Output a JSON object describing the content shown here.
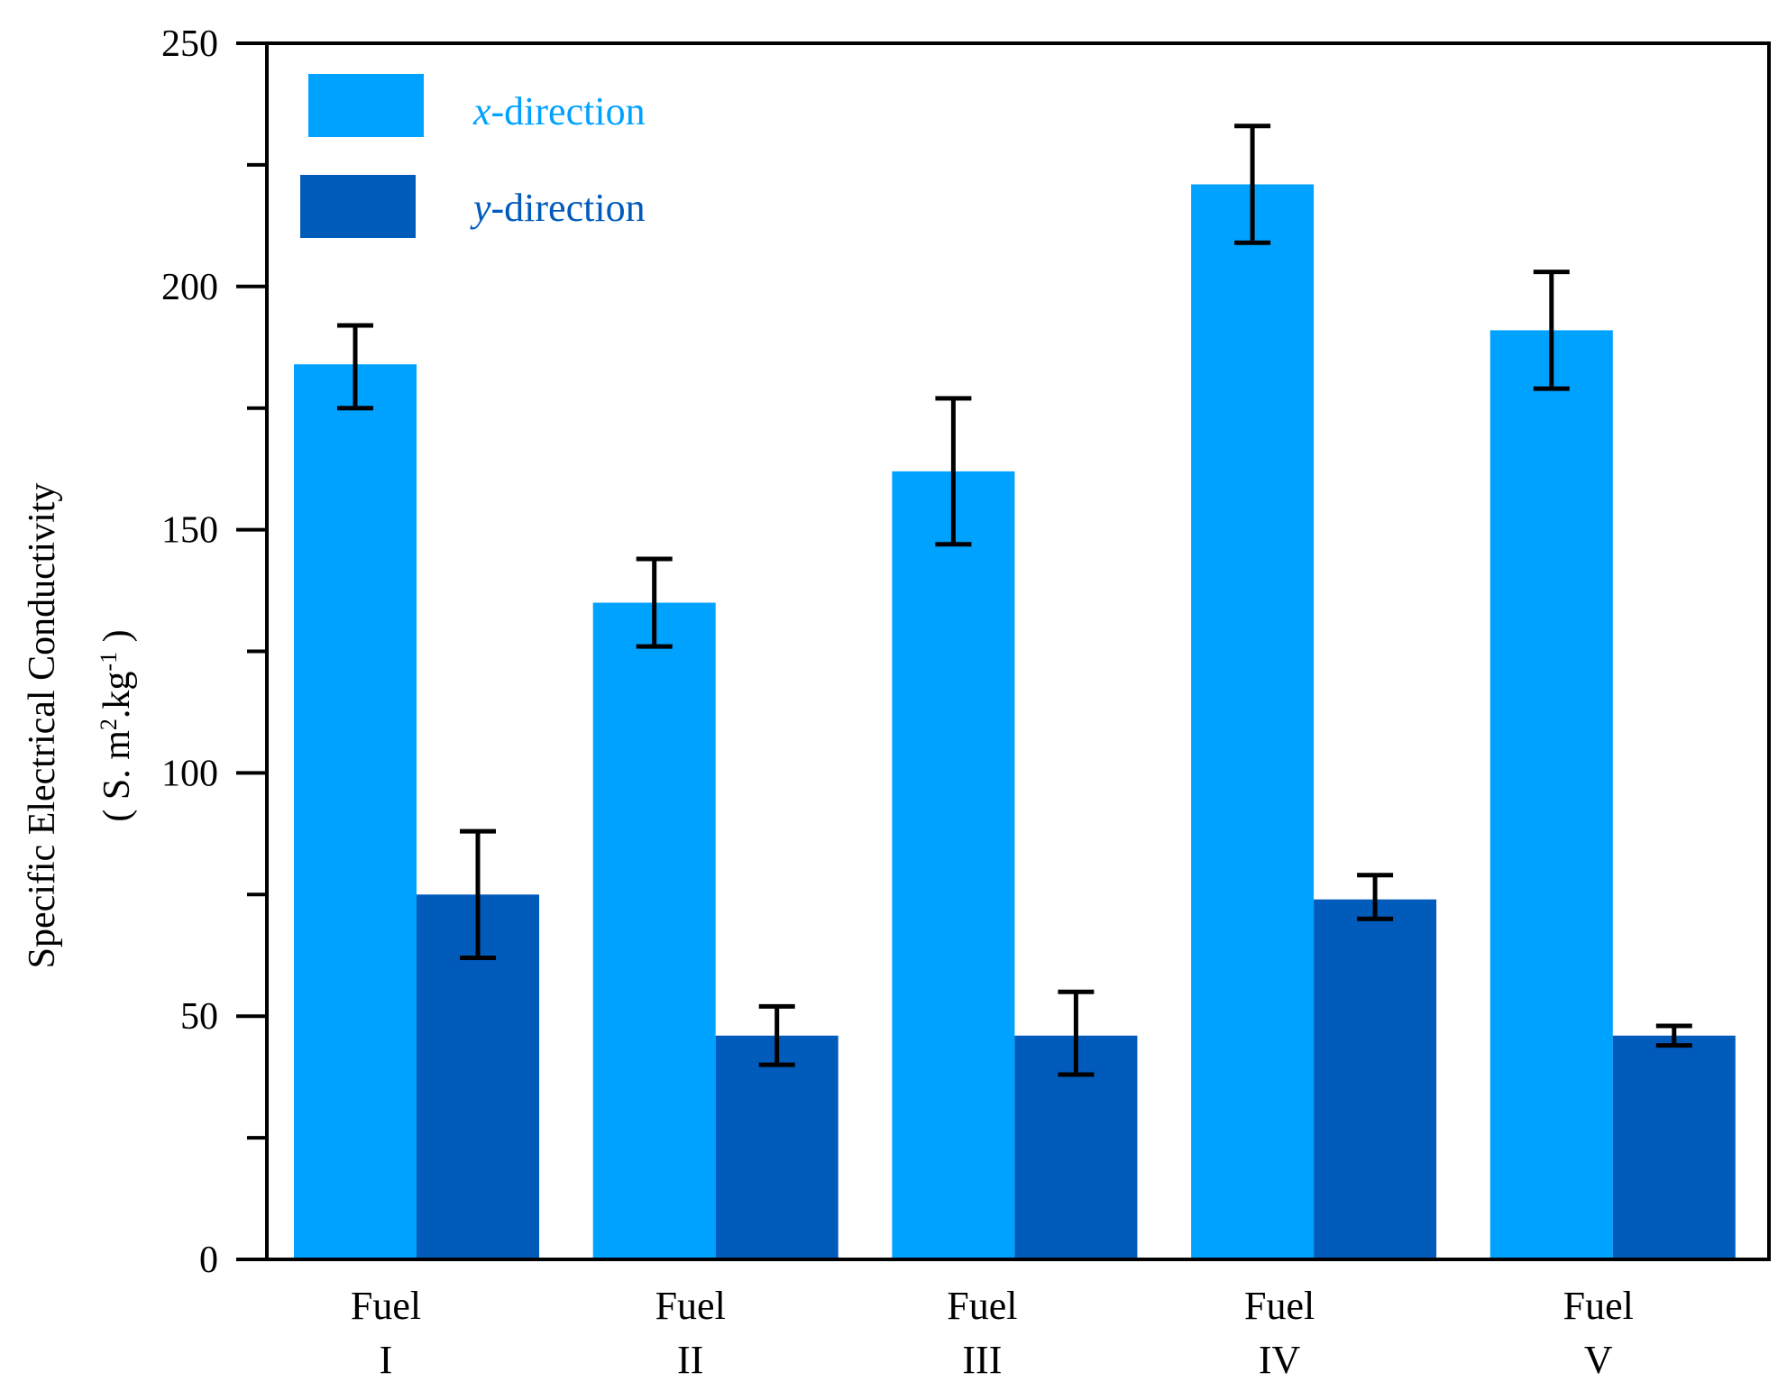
{
  "chart_data": {
    "type": "bar",
    "categories": [
      {
        "line1": "Fuel",
        "line2": "I"
      },
      {
        "line1": "Fuel",
        "line2": "II"
      },
      {
        "line1": "Fuel",
        "line2": "III"
      },
      {
        "line1": "Fuel",
        "line2": "IV"
      },
      {
        "line1": "Fuel",
        "line2": "V"
      }
    ],
    "series": [
      {
        "name_var": "x",
        "name_rest": "-direction",
        "color": "#00a2ff",
        "values": [
          184,
          135,
          162,
          221,
          191
        ],
        "error_low": [
          175,
          126,
          147,
          209,
          179
        ],
        "error_high": [
          192,
          144,
          177,
          233,
          203
        ]
      },
      {
        "name_var": "y",
        "name_rest": "-direction",
        "color": "#005bbb",
        "values": [
          75,
          46,
          46,
          74,
          46
        ],
        "error_low": [
          62,
          40,
          38,
          70,
          44
        ],
        "error_high": [
          88,
          52,
          55,
          79,
          48
        ]
      }
    ],
    "ylabel_line1": "Specific Electrical Conductivity",
    "ylabel_line2": {
      "pre": "( S. m",
      "sup1": "2",
      "mid": ".kg",
      "sup2": "-1",
      "post": " )"
    },
    "ylim": [
      0,
      250
    ],
    "yticks": [
      0,
      50,
      100,
      150,
      200,
      250
    ],
    "yminor_step": 25,
    "grid": false,
    "legend_position": "top-left",
    "legend_text_colors": [
      "#00a2ff",
      "#005bbb"
    ]
  }
}
